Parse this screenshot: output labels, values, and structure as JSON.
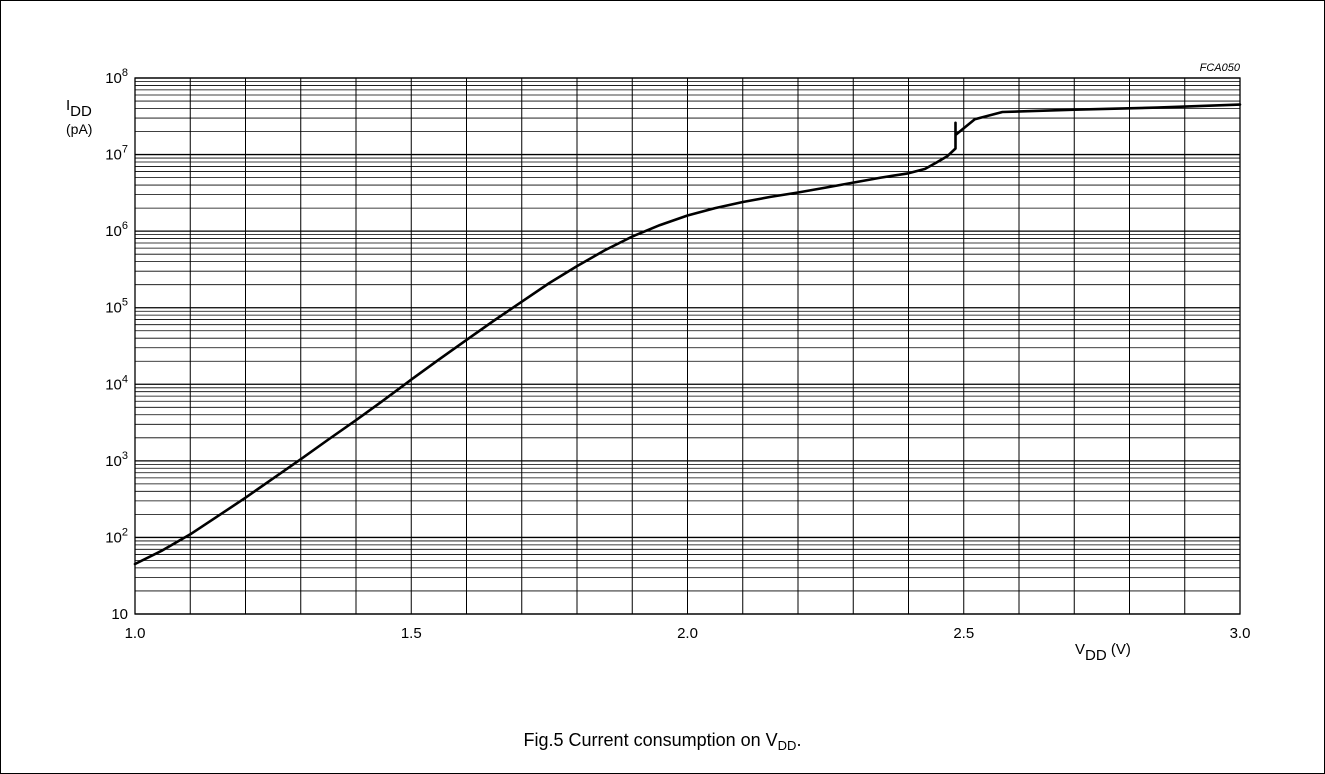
{
  "figure_code": "FCA050",
  "caption": {
    "prefix": "Fig.5  Current consumption on V",
    "subscript": "DD",
    "suffix": "."
  },
  "chart_data": {
    "type": "line",
    "title": "",
    "xlabel": {
      "main": "V",
      "subscript": "DD",
      "unit": " (V)"
    },
    "ylabel": {
      "main": "I",
      "subscript": "DD",
      "unit": "(pA)"
    },
    "xlim": [
      1.0,
      3.0
    ],
    "ylim": [
      10,
      100000000
    ],
    "yscale": "log",
    "grid": true,
    "legend": "none",
    "x_ticks": [
      "1.0",
      "1.5",
      "2.0",
      "2.5",
      "3.0"
    ],
    "y_ticks": [
      {
        "base": "10",
        "exp": ""
      },
      {
        "base": "10",
        "exp": "2"
      },
      {
        "base": "10",
        "exp": "3"
      },
      {
        "base": "10",
        "exp": "4"
      },
      {
        "base": "10",
        "exp": "5"
      },
      {
        "base": "10",
        "exp": "6"
      },
      {
        "base": "10",
        "exp": "7"
      },
      {
        "base": "10",
        "exp": "8"
      }
    ],
    "series": [
      {
        "color": "#000000",
        "points": [
          [
            1.0,
            45
          ],
          [
            1.05,
            68
          ],
          [
            1.1,
            110
          ],
          [
            1.15,
            190
          ],
          [
            1.2,
            330
          ],
          [
            1.25,
            590
          ],
          [
            1.3,
            1050
          ],
          [
            1.35,
            1900
          ],
          [
            1.4,
            3400
          ],
          [
            1.45,
            6200
          ],
          [
            1.5,
            11500
          ],
          [
            1.55,
            21000
          ],
          [
            1.6,
            38000
          ],
          [
            1.65,
            68000
          ],
          [
            1.7,
            120000
          ],
          [
            1.75,
            210000
          ],
          [
            1.8,
            350000
          ],
          [
            1.85,
            560000
          ],
          [
            1.9,
            850000
          ],
          [
            1.95,
            1200000
          ],
          [
            2.0,
            1600000
          ],
          [
            2.05,
            2000000
          ],
          [
            2.1,
            2400000
          ],
          [
            2.15,
            2800000
          ],
          [
            2.2,
            3200000
          ],
          [
            2.25,
            3700000
          ],
          [
            2.3,
            4300000
          ],
          [
            2.35,
            5000000
          ],
          [
            2.4,
            5700000
          ],
          [
            2.43,
            6500000
          ],
          [
            2.45,
            7800000
          ],
          [
            2.47,
            9500000
          ],
          [
            2.485,
            12000000
          ],
          [
            2.485,
            16500000
          ],
          [
            2.485,
            26000000
          ],
          [
            2.485,
            18000000
          ],
          [
            2.52,
            29000000
          ],
          [
            2.57,
            36000000
          ],
          [
            2.7,
            38500000
          ],
          [
            2.85,
            41000000
          ],
          [
            3.0,
            45000000
          ]
        ]
      }
    ]
  }
}
